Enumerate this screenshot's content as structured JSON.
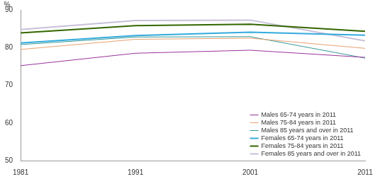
{
  "chart_data": {
    "type": "line",
    "y_label": "%",
    "x": [
      1981,
      1991,
      2001,
      2011
    ],
    "xlim": [
      1981,
      2011
    ],
    "xticks": [
      1981,
      1991,
      2001,
      2011
    ],
    "ylim": [
      50,
      90
    ],
    "yticks": [
      50,
      60,
      70,
      80,
      90
    ],
    "grid": false,
    "legend": "lower right",
    "series": [
      {
        "name": "Males 65-74 years in 2011",
        "color": "#993399",
        "values": [
          75.2,
          78.5,
          79.3,
          77.4
        ]
      },
      {
        "name": "Males 75-84 years in 2011",
        "color": "#e8a070",
        "values": [
          79.5,
          82.2,
          82.5,
          79.8
        ]
      },
      {
        "name": "Males 85 years and over in 2011",
        "color": "#339999",
        "values": [
          80.8,
          82.8,
          82.9,
          77.2
        ]
      },
      {
        "name": "Females 65-74 years in 2011",
        "color": "#33aadd",
        "values": [
          81.2,
          83.2,
          84.1,
          83.3
        ]
      },
      {
        "name": "Females 75-84 years in 2011",
        "color": "#336600",
        "values": [
          83.9,
          85.8,
          86.2,
          84.3
        ]
      },
      {
        "name": "Females 85 years and over in 2011",
        "color": "#c8c0d8",
        "values": [
          84.8,
          87.2,
          87.3,
          81.8
        ]
      }
    ]
  }
}
